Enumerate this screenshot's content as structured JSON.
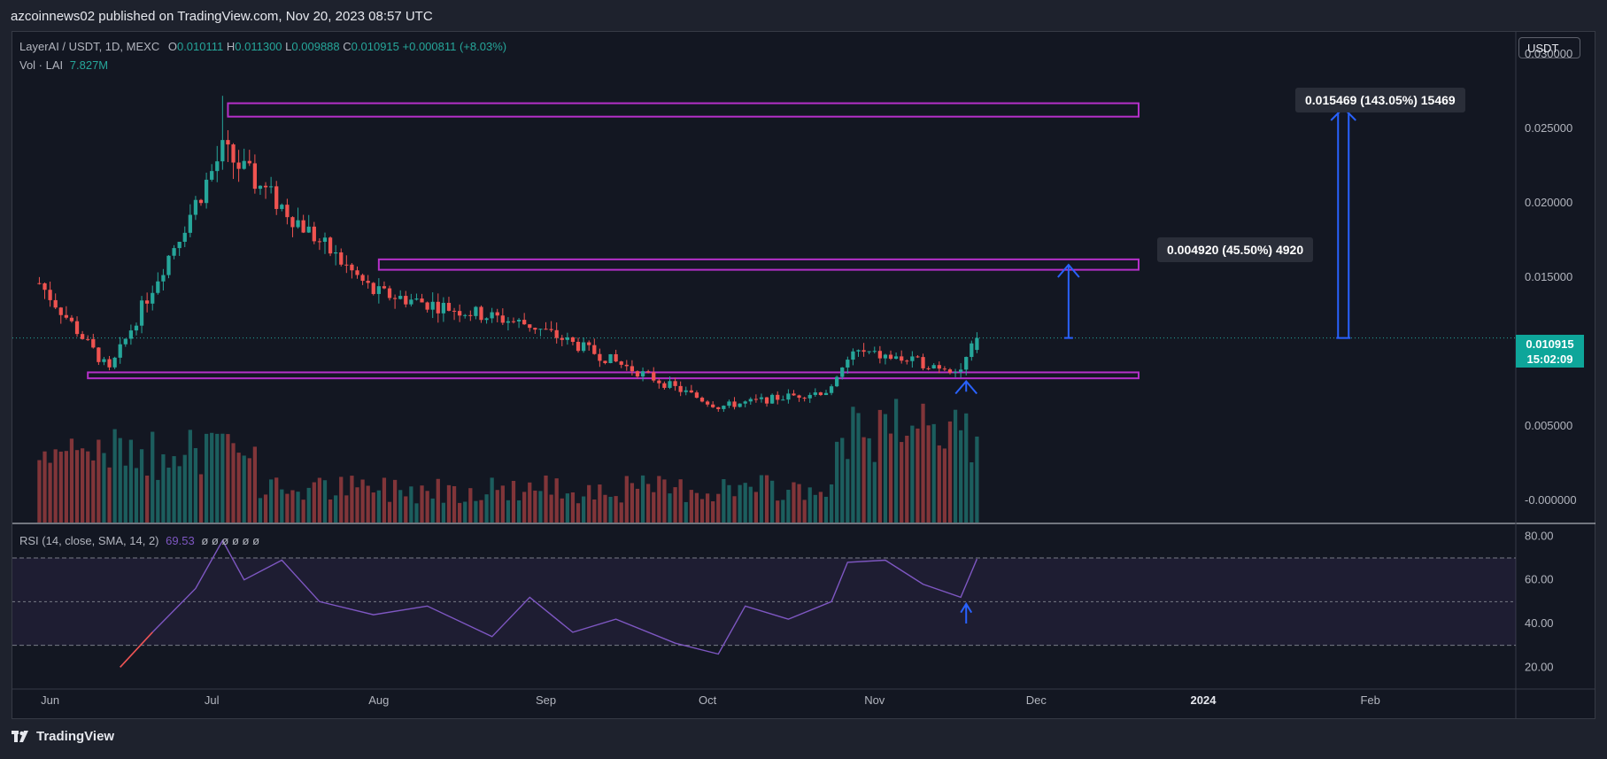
{
  "header": {
    "published": "azcoinnews02 published on TradingView.com, Nov 20, 2023 08:57 UTC"
  },
  "legend": {
    "symbol": "LayerAI / USDT, 1D, MEXC",
    "o_label": "O",
    "o": "0.010111",
    "h_label": "H",
    "h": "0.011300",
    "l_label": "L",
    "l": "0.009888",
    "c_label": "C",
    "c": "0.010915",
    "change": "+0.000811 (+8.03%)",
    "vol_label": "Vol · LAI",
    "vol": "7.827M"
  },
  "rsi_legend": {
    "label": "RSI (14, close, SMA, 14, 2)",
    "value": "69.53",
    "placeholders": "ø ø ø ø ø ø"
  },
  "price_scale": {
    "currency": "USDT",
    "ticks": [
      "0.030000",
      "0.025000",
      "0.020000",
      "0.015000",
      "0.005000",
      "-0.000000"
    ],
    "last_price": "0.010915",
    "countdown": "15:02:09"
  },
  "rsi_scale": {
    "ticks": [
      "80.00",
      "60.00",
      "40.00",
      "20.00"
    ]
  },
  "time_axis": {
    "labels": [
      "Jun",
      "Jul",
      "Aug",
      "Sep",
      "Oct",
      "Nov",
      "Dec",
      "2024",
      "Feb"
    ]
  },
  "annotations": {
    "target_1": "0.004920 (45.50%) 4920",
    "target_2": "0.015469 (143.05%) 15469"
  },
  "footer": {
    "brand": "TradingView"
  },
  "colors": {
    "up": "#26a69a",
    "down": "#ef5350",
    "zone": "#b530c9",
    "arrow": "#2962ff",
    "rsi": "#7e57c2",
    "bg": "#131722"
  },
  "chart_data": [
    {
      "type": "candlestick",
      "title": "LayerAI / USDT, 1D, MEXC",
      "x_range": [
        "2023-05-25",
        "2024-02-28"
      ],
      "ylim": [
        -0.0015,
        0.0315
      ],
      "zones": [
        {
          "from": "2023-07-04",
          "to": "2023-12-20",
          "low": 0.0258,
          "high": 0.0267
        },
        {
          "from": "2023-08-01",
          "to": "2023-12-20",
          "low": 0.0155,
          "high": 0.0162
        },
        {
          "from": "2023-06-08",
          "to": "2023-12-20",
          "low": 0.0082,
          "high": 0.0086
        }
      ],
      "arrows": [
        {
          "date": "2023-11-18",
          "from": 0.0073,
          "to": 0.008
        },
        {
          "date": "2023-12-07",
          "from": 0.010915,
          "to": 0.015835
        },
        {
          "date": "2024-01-27",
          "from": 0.010915,
          "to": 0.026384
        }
      ],
      "volume_peak": 12,
      "key_candles": [
        {
          "date": "2023-05-30",
          "close": 0.0146
        },
        {
          "date": "2023-06-12",
          "close": 0.0087
        },
        {
          "date": "2023-07-03",
          "close": 0.0235,
          "high": 0.0272
        },
        {
          "date": "2023-07-31",
          "close": 0.014
        },
        {
          "date": "2023-08-29",
          "close": 0.0118
        },
        {
          "date": "2023-10-03",
          "close": 0.0063
        },
        {
          "date": "2023-10-24",
          "close": 0.0074
        },
        {
          "date": "2023-10-28",
          "close": 0.01
        },
        {
          "date": "2023-11-17",
          "close": 0.0088
        },
        {
          "date": "2023-11-20",
          "open": 0.010111,
          "high": 0.0113,
          "low": 0.009888,
          "close": 0.010915
        }
      ]
    },
    {
      "type": "line",
      "title": "RSI (14, close, SMA, 14, 2)",
      "ylim": [
        10,
        85
      ],
      "bands": [
        30,
        50,
        70
      ],
      "x": [
        "2023-06-14",
        "2023-06-20",
        "2023-06-28",
        "2023-07-03",
        "2023-07-07",
        "2023-07-14",
        "2023-07-21",
        "2023-07-31",
        "2023-08-10",
        "2023-08-22",
        "2023-08-29",
        "2023-09-06",
        "2023-09-14",
        "2023-09-25",
        "2023-10-03",
        "2023-10-08",
        "2023-10-16",
        "2023-10-24",
        "2023-10-27",
        "2023-11-03",
        "2023-11-10",
        "2023-11-17",
        "2023-11-20"
      ],
      "y": [
        20,
        36,
        56,
        78,
        60,
        69,
        50,
        44,
        48,
        34,
        52,
        36,
        42,
        31,
        26,
        48,
        42,
        50,
        68,
        69,
        58,
        52,
        69.53
      ]
    }
  ]
}
